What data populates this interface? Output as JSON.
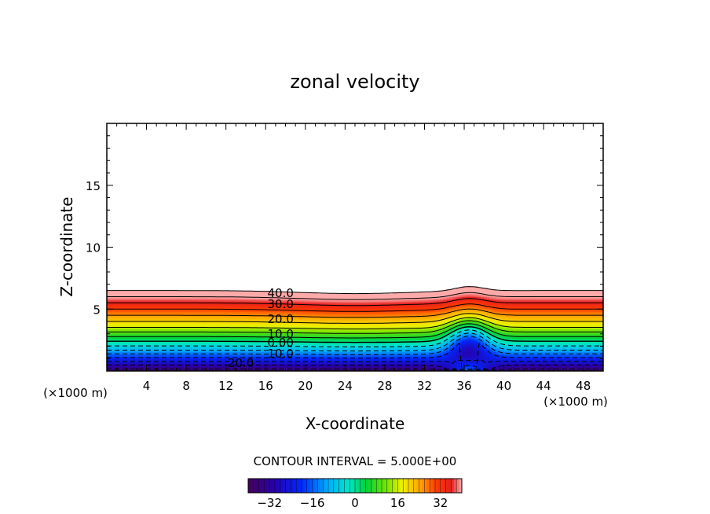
{
  "chart_data": {
    "type": "contour",
    "title": "zonal velocity",
    "xlabel": "X-coordinate",
    "ylabel": "Z-coordinate",
    "x_unit_label": "(×1000 m)",
    "x_unit_label_right": "(×1000 m)",
    "xlim": [
      0,
      50
    ],
    "ylim": [
      0,
      20
    ],
    "x_ticks": [
      4,
      8,
      12,
      16,
      20,
      24,
      28,
      32,
      36,
      40,
      44,
      48
    ],
    "x_tick_labels": [
      "4",
      "8",
      "12",
      "16",
      "20",
      "24",
      "28",
      "32",
      "36",
      "40",
      "44",
      "48"
    ],
    "y_ticks": [
      5,
      10,
      15
    ],
    "y_tick_labels": [
      "5",
      "10",
      "15"
    ],
    "contour_interval_text": "CONTOUR INTERVAL = 5.000E+00",
    "contour_interval": 5.0,
    "contour_labels": [
      {
        "text": "40.0",
        "x": 17.5,
        "z": 6.3
      },
      {
        "text": "30.0",
        "x": 17.5,
        "z": 5.4
      },
      {
        "text": "20.0",
        "x": 17.5,
        "z": 4.2
      },
      {
        "text": "10.0",
        "x": 17.5,
        "z": 3.0
      },
      {
        "text": "0.00",
        "x": 17.5,
        "z": 2.3
      },
      {
        "text": "10.0",
        "x": 17.5,
        "z": 1.4
      },
      {
        "text": "20.0",
        "x": 13.5,
        "z": 0.65
      }
    ],
    "colorbar": {
      "min": -40,
      "max": 40,
      "ticks": [
        -32,
        -16,
        0,
        16,
        32
      ],
      "tick_labels": [
        "−32",
        "−16",
        "0",
        "16",
        "32"
      ]
    },
    "wind_field": {
      "description_levels_z": [
        0.0,
        0.6,
        1.2,
        1.8,
        2.4,
        3.0,
        3.6,
        4.2,
        4.8,
        5.4,
        6.0,
        6.6
      ],
      "values_at_far_field": [
        -38,
        -28,
        -18,
        -8,
        0,
        8,
        16,
        22,
        28,
        34,
        40,
        45
      ],
      "top_of_jet_z": 6.5,
      "mountain_peak_x": 36.5
    }
  }
}
